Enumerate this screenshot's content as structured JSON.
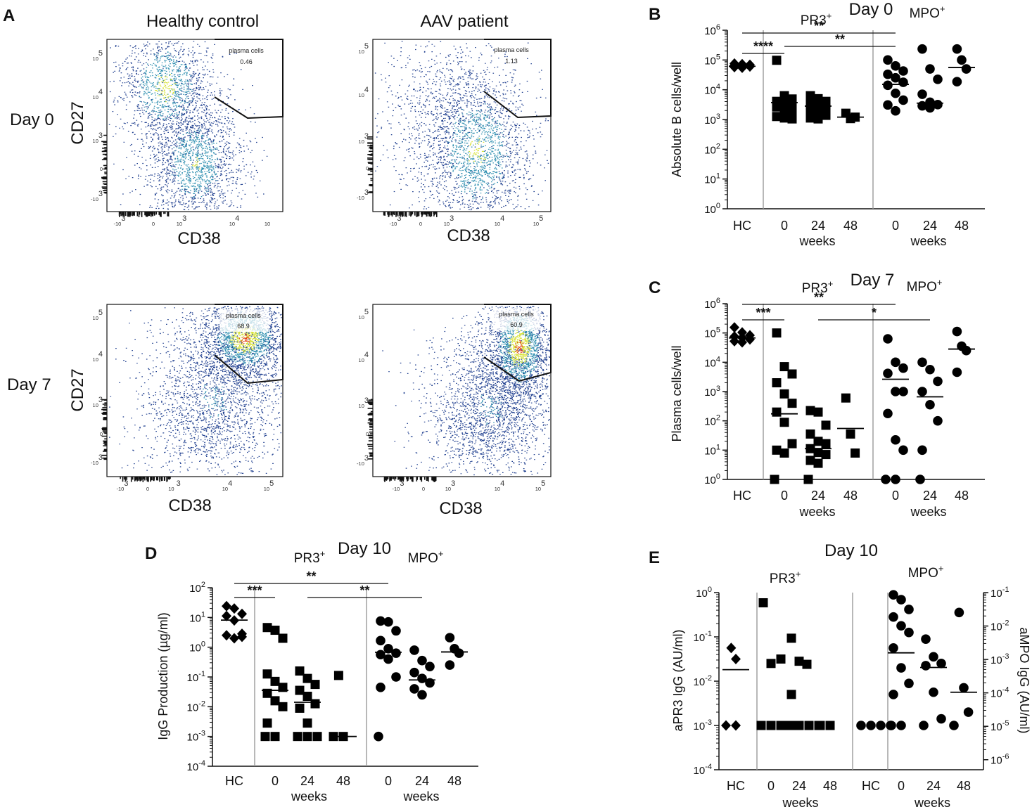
{
  "panel_labels": {
    "A": "A",
    "B": "B",
    "C": "C",
    "D": "D",
    "E": "E"
  },
  "flow": {
    "columns": [
      "Healthy control",
      "AAV patient"
    ],
    "rows": [
      "Day 0",
      "Day 7"
    ],
    "x_label": "CD38",
    "y_label": "CD27",
    "gate_name": "plasma cells",
    "gate_values": {
      "day0_hc": "0.46",
      "day0_aav": "1.13",
      "day7_hc": "68.9",
      "day7_aav": "60.9"
    },
    "colors": {
      "low": "#1f3f8f",
      "mid": "#2f8fb0",
      "high": "#d8e23a",
      "peak": "#e23a14"
    }
  },
  "chart_data": [
    {
      "id": "B",
      "type": "scatter",
      "title": "Day 0",
      "ylabel": "Absolute B cells/well",
      "yscale": "log",
      "ylim": [
        0,
        6
      ],
      "categories": [
        "HC",
        "0",
        "24",
        "48",
        "0",
        "24",
        "48"
      ],
      "group_labels": [
        {
          "text": "PR3",
          "sup": "+"
        },
        {
          "text": "MPO",
          "sup": "+"
        }
      ],
      "xlabel_groups": [
        "weeks",
        "weeks"
      ],
      "series": [
        {
          "name": "HC",
          "marker": "diamond",
          "log10_values": [
            4.88,
            4.86,
            4.84,
            4.82,
            4.8,
            4.78,
            4.76,
            4.74
          ],
          "median_log10": 4.79
        },
        {
          "name": "PR3 0",
          "marker": "square",
          "log10_values": [
            4.99,
            3.8,
            3.69,
            3.61,
            3.55,
            3.5,
            3.42,
            3.33,
            3.21,
            3.1,
            3.05,
            3.02
          ],
          "median_log10": 3.57
        },
        {
          "name": "PR3 24",
          "marker": "square",
          "log10_values": [
            3.8,
            3.7,
            3.61,
            3.52,
            3.46,
            3.4,
            3.33,
            3.23,
            3.14,
            3.05,
            3.02
          ],
          "median_log10": 3.45
        },
        {
          "name": "PR3 48",
          "marker": "square",
          "log10_values": [
            3.21,
            3.03,
            3.08
          ],
          "median_log10": 3.08
        },
        {
          "name": "MPO 0",
          "marker": "circle",
          "log10_values": [
            5.0,
            4.8,
            4.63,
            4.52,
            4.4,
            4.25,
            4.15,
            3.88,
            3.65,
            3.49,
            3.29
          ],
          "median_log10": 4.18
        },
        {
          "name": "MPO 24",
          "marker": "circle",
          "log10_values": [
            5.37,
            4.7,
            4.35,
            3.85,
            3.58,
            3.5,
            3.46,
            3.39
          ],
          "median_log10": 3.55
        },
        {
          "name": "MPO 48",
          "marker": "circle",
          "log10_values": [
            5.37,
            5.0,
            4.7,
            4.27
          ],
          "median_log10": 4.75
        }
      ],
      "significance": [
        {
          "from": 0,
          "to": 4,
          "label": "**"
        },
        {
          "from": 1,
          "to": 4,
          "label": "**"
        },
        {
          "from": 0,
          "to": 1,
          "label": "****"
        }
      ]
    },
    {
      "id": "C",
      "type": "scatter",
      "title": "Day 7",
      "ylabel": "Plasma cells/well",
      "yscale": "log",
      "ylim": [
        0,
        6
      ],
      "categories": [
        "HC",
        "0",
        "24",
        "48",
        "0",
        "24",
        "48"
      ],
      "group_labels": [
        {
          "text": "PR3",
          "sup": "+"
        },
        {
          "text": "MPO",
          "sup": "+"
        }
      ],
      "xlabel_groups": [
        "weeks",
        "weeks"
      ],
      "series": [
        {
          "name": "HC",
          "marker": "diamond",
          "log10_values": [
            5.19,
            5.02,
            4.92,
            4.88,
            4.84,
            4.78,
            4.72,
            4.68
          ],
          "median_log10": 4.83
        },
        {
          "name": "PR3 0",
          "marker": "square",
          "log10_values": [
            5.0,
            3.85,
            3.6,
            3.3,
            2.92,
            2.6,
            2.3,
            1.95,
            1.22,
            1.0,
            0.9,
            0.0
          ],
          "median_log10": 2.24
        },
        {
          "name": "PR3 24",
          "marker": "square",
          "log10_values": [
            2.35,
            2.3,
            1.85,
            1.55,
            1.3,
            1.22,
            1.05,
            0.92,
            0.85,
            0.65,
            0.55,
            0.0
          ],
          "median_log10": 1.05
        },
        {
          "name": "PR3 48",
          "marker": "square",
          "log10_values": [
            2.78,
            1.55,
            0.9
          ],
          "median_log10": 1.74
        },
        {
          "name": "MPO 0",
          "marker": "circle",
          "log10_values": [
            4.8,
            4.0,
            3.8,
            3.62,
            3.0,
            3.0,
            2.25,
            1.35,
            1.0,
            0.0,
            0.0
          ],
          "median_log10": 3.42
        },
        {
          "name": "MPO 24",
          "marker": "circle",
          "log10_values": [
            4.0,
            3.75,
            3.35,
            3.0,
            2.55,
            2.0,
            1.0,
            0.0
          ],
          "median_log10": 2.82
        },
        {
          "name": "MPO 48",
          "marker": "circle",
          "log10_values": [
            5.05,
            4.55,
            4.4,
            3.66
          ],
          "median_log10": 4.45
        }
      ],
      "significance": [
        {
          "from": 0,
          "to": 4,
          "label": "**"
        },
        {
          "from": 2,
          "to": 5,
          "label": "*"
        },
        {
          "from": 0,
          "to": 1,
          "label": "***"
        }
      ]
    },
    {
      "id": "D",
      "type": "scatter",
      "title": "Day 10",
      "ylabel": "IgG Production (µg/ml)",
      "yscale": "log",
      "ylim": [
        -4,
        2
      ],
      "categories": [
        "HC",
        "0",
        "24",
        "48",
        "0",
        "24",
        "48"
      ],
      "group_labels": [
        {
          "text": "PR3",
          "sup": "+"
        },
        {
          "text": "MPO",
          "sup": "+"
        }
      ],
      "xlabel_groups": [
        "weeks",
        "weeks"
      ],
      "series": [
        {
          "name": "HC",
          "marker": "diamond",
          "log10_values": [
            1.38,
            1.3,
            1.12,
            1.05,
            0.9,
            0.45,
            0.4,
            0.3,
            0.35
          ],
          "median_log10": 0.91
        },
        {
          "name": "PR3 0",
          "marker": "square",
          "log10_values": [
            0.66,
            0.57,
            0.3,
            -0.9,
            -1.15,
            -1.35,
            -1.55,
            -1.8,
            -2.0,
            -2.55,
            -3.0,
            -3.0
          ],
          "median_log10": -1.45
        },
        {
          "name": "PR3 24",
          "marker": "square",
          "log10_values": [
            -0.8,
            -1.05,
            -1.25,
            -1.45,
            -1.65,
            -1.9,
            -2.05,
            -2.55,
            -3.0,
            -3.0,
            -3.0
          ],
          "median_log10": -1.85
        },
        {
          "name": "PR3 48",
          "marker": "square",
          "log10_values": [
            -0.95,
            -3.0,
            -3.0
          ],
          "median_log10": -3.0
        },
        {
          "name": "MPO 0",
          "marker": "circle",
          "log10_values": [
            0.88,
            0.85,
            0.55,
            0.22,
            -0.05,
            -0.2,
            -0.25,
            -0.4,
            -1.0,
            -1.35,
            -3.0
          ],
          "median_log10": -0.17
        },
        {
          "name": "MPO 24",
          "marker": "circle",
          "log10_values": [
            -0.1,
            -0.45,
            -0.65,
            -0.85,
            -1.05,
            -1.2,
            -1.4,
            -1.6
          ],
          "median_log10": -1.1
        },
        {
          "name": "MPO 48",
          "marker": "circle",
          "log10_values": [
            0.32,
            -0.05,
            -0.2,
            -0.6
          ],
          "median_log10": -0.16
        }
      ],
      "significance": [
        {
          "from": 0,
          "to": 4,
          "label": "**"
        },
        {
          "from": 2,
          "to": 5,
          "label": "**"
        },
        {
          "from": 0,
          "to": 1,
          "label": "***"
        }
      ]
    },
    {
      "id": "E",
      "type": "scatter",
      "title": "Day 10",
      "ylabel": "aPR3 IgG (AU/ml)",
      "ylabel_right": "aMPO IgG (AU/ml)",
      "yscale": "log",
      "ylim": [
        -4,
        0
      ],
      "ylim_right": [
        -6.3,
        -1
      ],
      "categories": [
        "HC",
        "0",
        "24",
        "48",
        "HC",
        "0",
        "24",
        "48"
      ],
      "group_labels": [
        {
          "text": "PR3",
          "sup": "+"
        },
        {
          "text": "MPO",
          "sup": "+"
        }
      ],
      "xlabel_groups": [
        "weeks",
        "weeks"
      ],
      "series": [
        {
          "name": "HC (PR3)",
          "marker": "diamond",
          "log10_values": [
            -1.25,
            -1.5,
            -3.0,
            -3.0
          ],
          "median_log10": -1.74
        },
        {
          "name": "PR3 0",
          "marker": "square",
          "log10_values": [
            -0.23,
            -1.6,
            -3.0,
            -3.0,
            -3.0,
            -3.0
          ],
          "median_log10": null
        },
        {
          "name": "PR3 0b",
          "marker": "square",
          "log10_values": [
            -1.5,
            -3.0
          ],
          "median_log10": null
        },
        {
          "name": "PR3 24",
          "marker": "square",
          "log10_values": [
            -1.03,
            -1.55,
            -1.62,
            -2.3,
            -3.0,
            -3.0,
            -3.0,
            -3.0
          ],
          "median_log10": null
        },
        {
          "name": "PR3 48",
          "marker": "square",
          "log10_values": [
            -3.0,
            -3.0
          ],
          "median_log10": null
        },
        {
          "name": "HC (MPO)",
          "marker": "circle",
          "log10_values": [
            -3.0,
            -3.0,
            -3.0,
            -3.0
          ],
          "median_log10": null
        },
        {
          "name": "MPO 0",
          "marker": "circle",
          "log10_values": [
            -0.05,
            -0.16,
            -0.38,
            -0.55,
            -0.75,
            -0.9,
            -1.25,
            -1.7,
            -2.05,
            -2.3,
            -3.0,
            -3.0
          ],
          "median_log10": -1.36
        },
        {
          "name": "MPO 24",
          "marker": "circle",
          "log10_values": [
            -1.05,
            -1.45,
            -1.6,
            -1.65,
            -2.25,
            -2.85,
            -3.0
          ],
          "median_log10": -1.69
        },
        {
          "name": "MPO 48",
          "marker": "circle",
          "log10_values": [
            -0.45,
            -2.15,
            -2.7,
            -3.0
          ],
          "median_log10": -2.25
        }
      ],
      "significance": []
    }
  ]
}
